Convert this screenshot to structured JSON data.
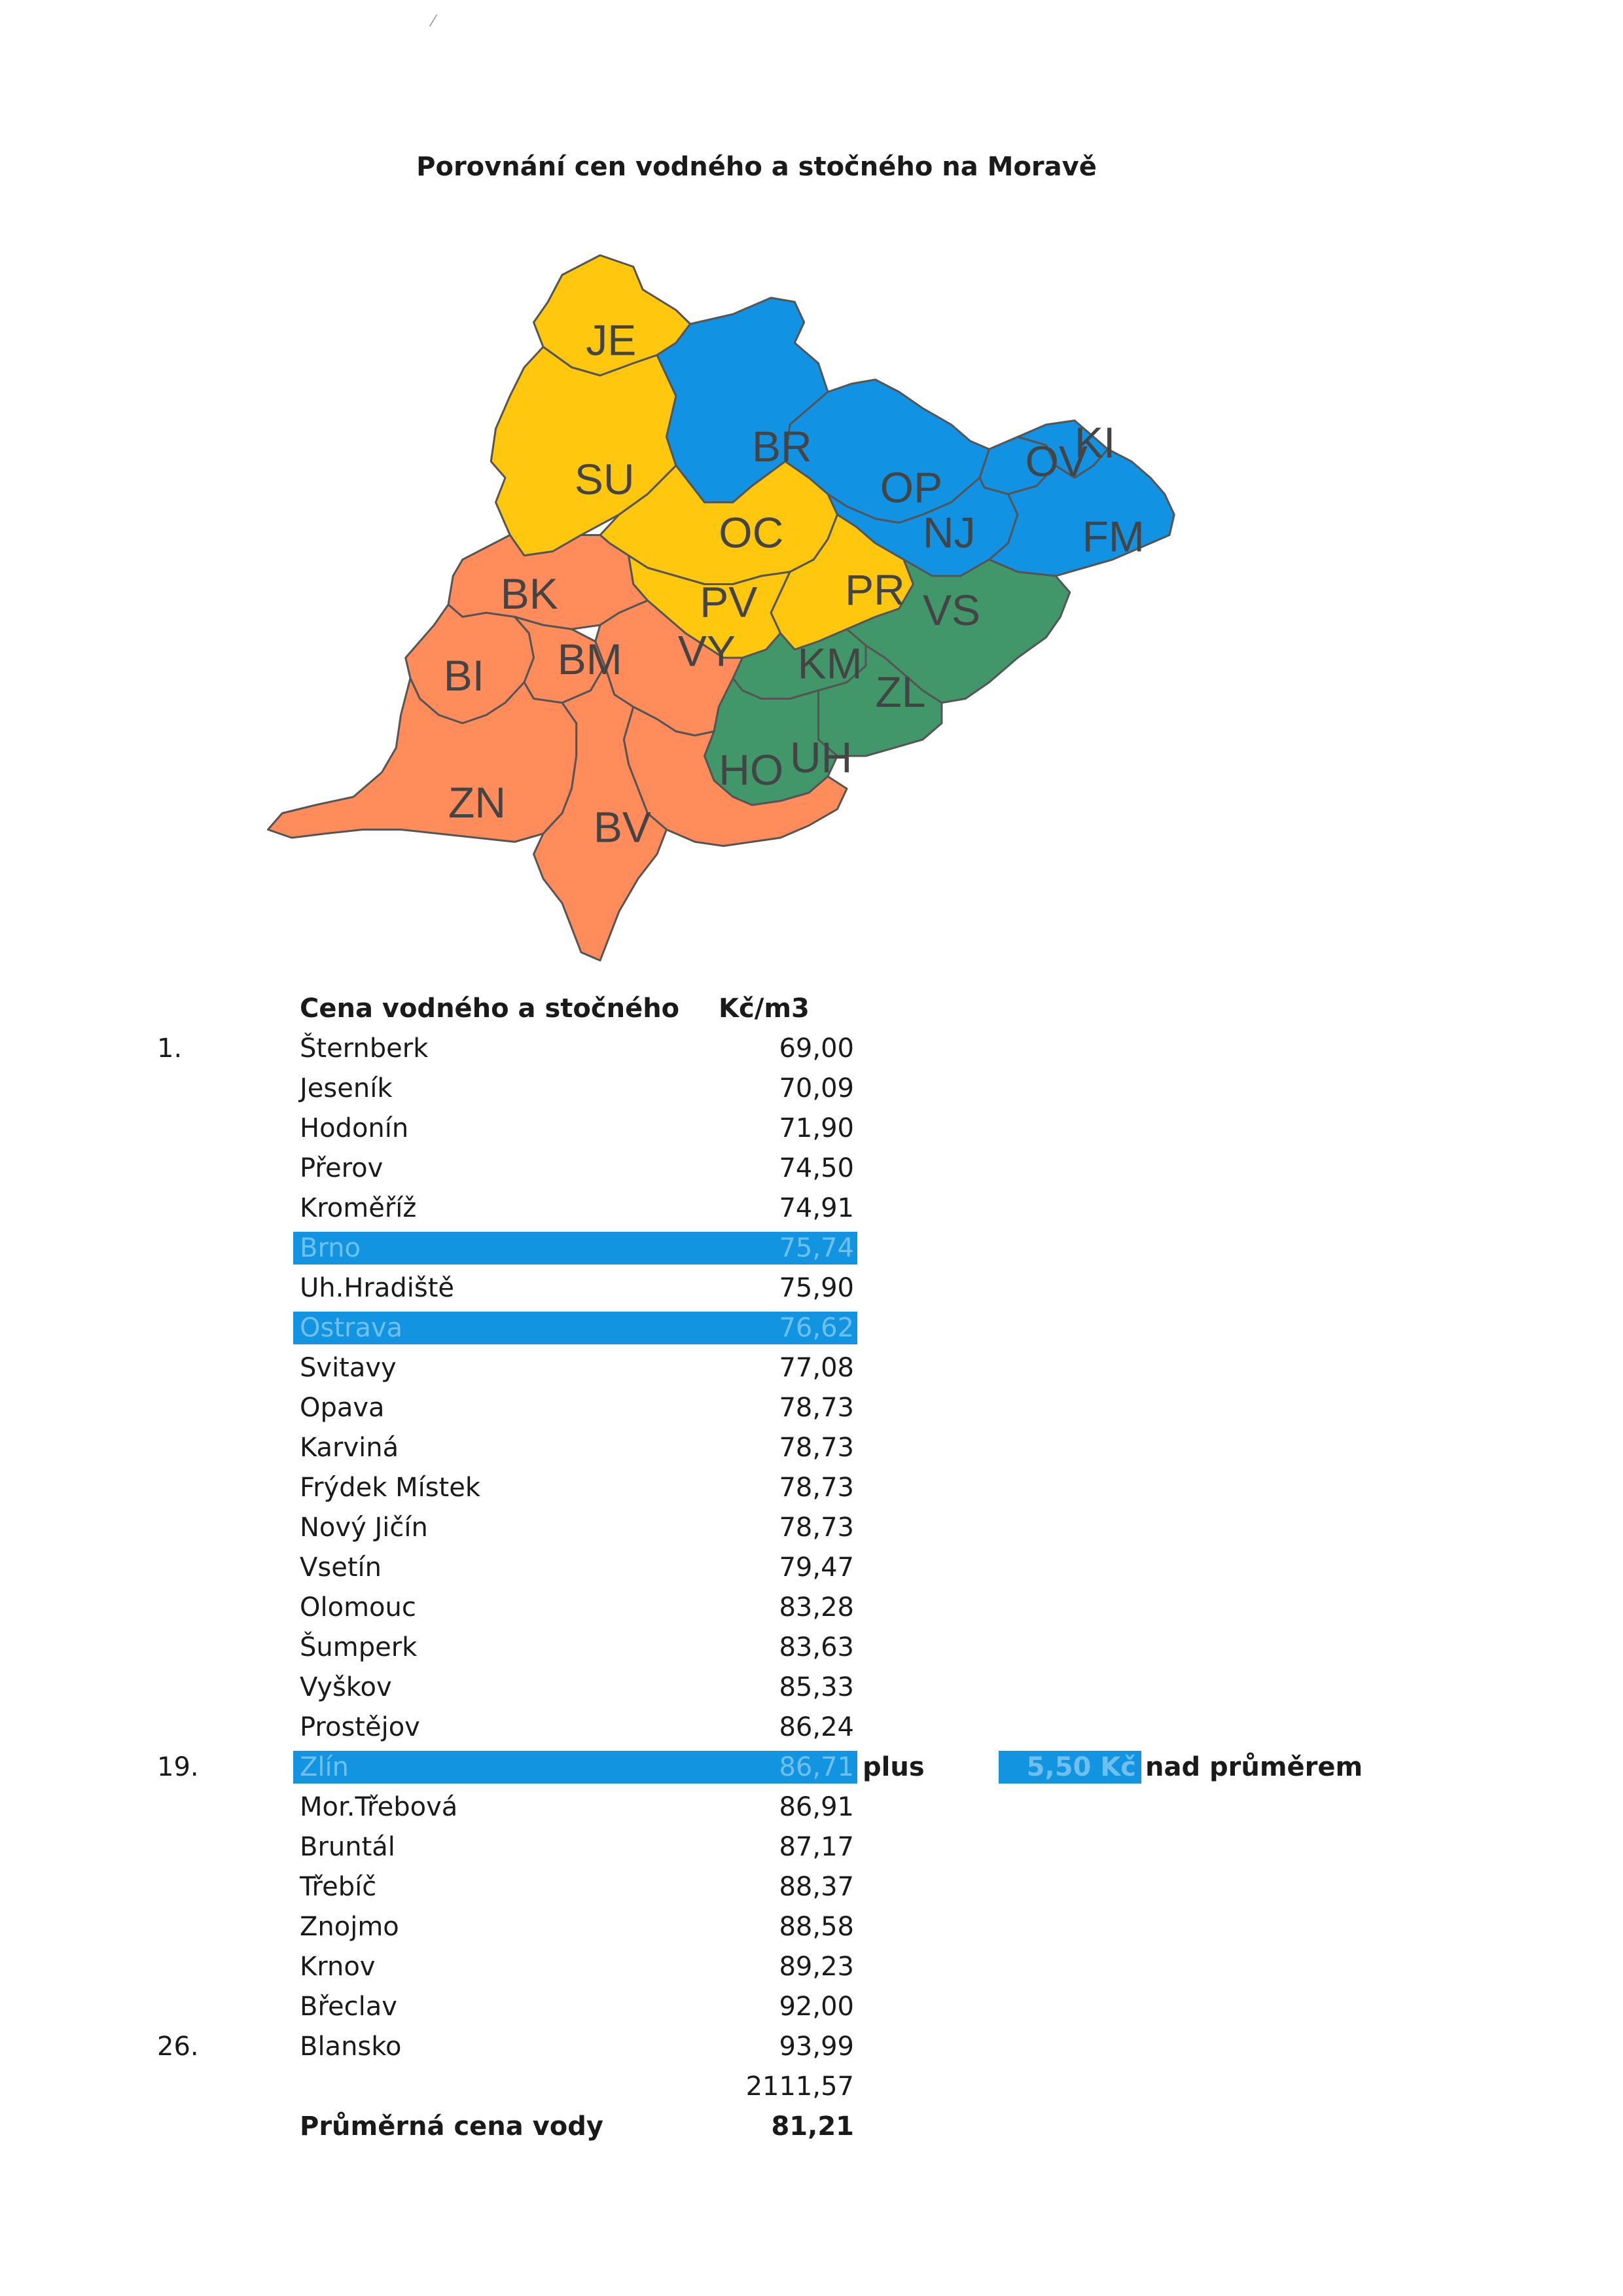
{
  "title": "Porovnání cen vodného a stočného na Moravě",
  "map": {
    "colors": {
      "yellow": "#ffc70e",
      "blue": "#1192e3",
      "green": "#42976a",
      "orange": "#ff8c5a"
    },
    "regions": [
      {
        "code": "JE",
        "color": "yellow"
      },
      {
        "code": "SU",
        "color": "yellow"
      },
      {
        "code": "BR",
        "color": "blue"
      },
      {
        "code": "OP",
        "color": "blue"
      },
      {
        "code": "OV",
        "color": "blue"
      },
      {
        "code": "KI",
        "color": "blue"
      },
      {
        "code": "NJ",
        "color": "blue"
      },
      {
        "code": "FM",
        "color": "blue"
      },
      {
        "code": "OC",
        "color": "yellow"
      },
      {
        "code": "PR",
        "color": "yellow"
      },
      {
        "code": "PV",
        "color": "yellow"
      },
      {
        "code": "BK",
        "color": "orange"
      },
      {
        "code": "VS",
        "color": "green"
      },
      {
        "code": "KM",
        "color": "green"
      },
      {
        "code": "ZL",
        "color": "green"
      },
      {
        "code": "UH",
        "color": "green"
      },
      {
        "code": "BM",
        "color": "orange"
      },
      {
        "code": "BI",
        "color": "orange"
      },
      {
        "code": "VY",
        "color": "orange"
      },
      {
        "code": "HO",
        "color": "orange"
      },
      {
        "code": "ZN",
        "color": "orange"
      },
      {
        "code": "BV",
        "color": "orange"
      }
    ]
  },
  "table": {
    "header": {
      "name": "Cena vodného a stočného",
      "unit": "Kč/m3"
    },
    "rows": [
      {
        "rank": "1.",
        "name": "Šternberk",
        "value": "69,00"
      },
      {
        "rank": "",
        "name": "Jeseník",
        "value": "70,09"
      },
      {
        "rank": "",
        "name": "Hodonín",
        "value": "71,90"
      },
      {
        "rank": "",
        "name": "Přerov",
        "value": "74,50"
      },
      {
        "rank": "",
        "name": "Kroměříž",
        "value": "74,91"
      },
      {
        "rank": "",
        "name": "Brno",
        "value": "75,74",
        "highlight": true
      },
      {
        "rank": "",
        "name": "Uh.Hradiště",
        "value": "75,90"
      },
      {
        "rank": "",
        "name": "Ostrava",
        "value": "76,62",
        "highlight": true
      },
      {
        "rank": "",
        "name": "Svitavy",
        "value": "77,08"
      },
      {
        "rank": "",
        "name": "Opava",
        "value": "78,73"
      },
      {
        "rank": "",
        "name": "Karviná",
        "value": "78,73"
      },
      {
        "rank": "",
        "name": "Frýdek Místek",
        "value": "78,73"
      },
      {
        "rank": "",
        "name": "Nový Jičín",
        "value": "78,73"
      },
      {
        "rank": "",
        "name": "Vsetín",
        "value": "79,47"
      },
      {
        "rank": "",
        "name": "Olomouc",
        "value": "83,28"
      },
      {
        "rank": "",
        "name": "Šumperk",
        "value": "83,63"
      },
      {
        "rank": "",
        "name": "Vyškov",
        "value": "85,33"
      },
      {
        "rank": "",
        "name": "Prostějov",
        "value": "86,24"
      },
      {
        "rank": "19.",
        "name": "Zlín",
        "value": "86,71",
        "highlight": true,
        "plus": "plus",
        "diff": "5,50 Kč",
        "diff_text": "nad průměrem"
      },
      {
        "rank": "",
        "name": "Mor.Třebová",
        "value": "86,91"
      },
      {
        "rank": "",
        "name": "Bruntál",
        "value": "87,17"
      },
      {
        "rank": "",
        "name": "Třebíč",
        "value": "88,37"
      },
      {
        "rank": "",
        "name": "Znojmo",
        "value": "88,58"
      },
      {
        "rank": "",
        "name": "Krnov",
        "value": "89,23"
      },
      {
        "rank": "",
        "name": "Břeclav",
        "value": "92,00"
      },
      {
        "rank": "26.",
        "name": "Blansko",
        "value": "93,99"
      }
    ],
    "sum": "2111,57",
    "average": {
      "name": "Průměrná cena vody",
      "value": "81,21"
    }
  }
}
